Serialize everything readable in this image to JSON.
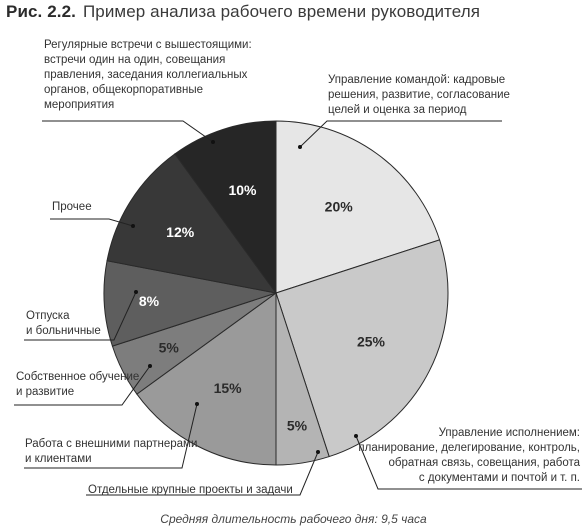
{
  "figure": {
    "number": "Рис. 2.2.",
    "title": "Пример анализа рабочего времени руководителя",
    "caption": "Средняя длительность рабочего дня: 9,5 часа"
  },
  "chart_data": {
    "type": "pie",
    "start_angle_deg": 0,
    "direction": "clockwise",
    "slices": [
      {
        "label": [
          "Управление командой: кадровые",
          "решения, развитие, согласование",
          "целей и оценка за период"
        ],
        "value": 20,
        "value_label": "20%",
        "color": "#e6e6e6",
        "text_color": "#2b2b2b"
      },
      {
        "label": [
          "Управление исполнением:",
          "планирование, делегирование, контроль,",
          "обратная связь, совещания, работа",
          "с документами и почтой и т. п."
        ],
        "value": 25,
        "value_label": "25%",
        "color": "#c9c9c9",
        "text_color": "#2b2b2b"
      },
      {
        "label": [
          "Отдельные крупные проекты и задачи"
        ],
        "value": 5,
        "value_label": "5%",
        "color": "#b4b4b4",
        "text_color": "#2b2b2b"
      },
      {
        "label": [
          "Работа с внешними партнерами",
          "и клиентами"
        ],
        "value": 15,
        "value_label": "15%",
        "color": "#9a9a9a",
        "text_color": "#2b2b2b"
      },
      {
        "label": [
          "Собственное обучение",
          "и развитие"
        ],
        "value": 5,
        "value_label": "5%",
        "color": "#7d7d7d",
        "text_color": "#2b2b2b"
      },
      {
        "label": [
          "Отпуска",
          "и больничные"
        ],
        "value": 8,
        "value_label": "8%",
        "color": "#5e5e5e",
        "text_color": "#ffffff"
      },
      {
        "label": [
          "Прочее"
        ],
        "value": 12,
        "value_label": "12%",
        "color": "#383838",
        "text_color": "#ffffff"
      },
      {
        "label": [
          "Регулярные встречи с вышестоящими:",
          "встречи один на один, совещания",
          "правления, заседания коллегиальных",
          "органов, общекорпоративные",
          "мероприятия"
        ],
        "value": 10,
        "value_label": "10%",
        "color": "#262626",
        "text_color": "#ffffff"
      }
    ]
  }
}
